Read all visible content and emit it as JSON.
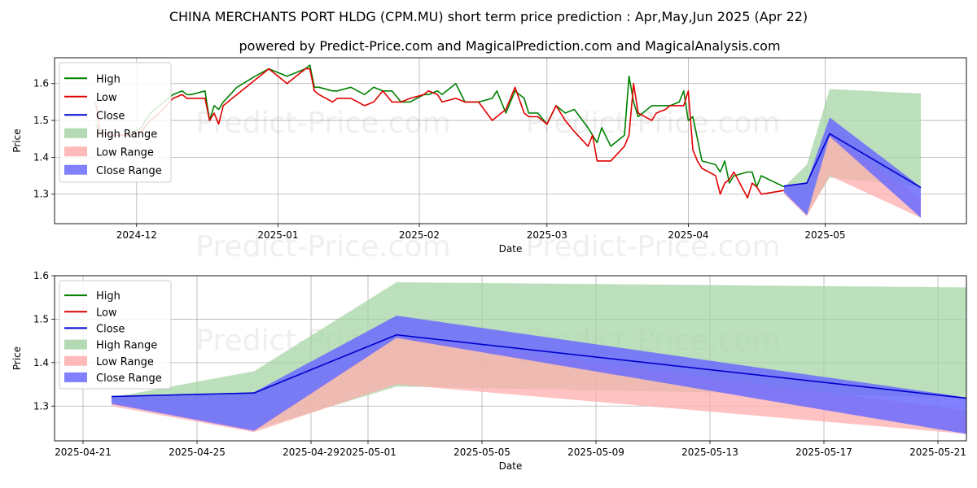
{
  "title": "CHINA MERCHANTS PORT HLDG (CPM.MU) short term price prediction : Apr,May,Jun 2025 (Apr 22)",
  "subtitle": "powered by Predict-Price.com and MagicalPrediction.com and MagicalAnalysis.com",
  "watermark": "Predict-Price.com",
  "colors": {
    "high": "#008000",
    "low": "#e00000",
    "close": "#0000cc",
    "high_range": "#a6d4a6",
    "low_range": "#ffadad",
    "close_range": "#6b6bff",
    "grid": "#b0b0b0"
  },
  "legend": [
    "High",
    "Low",
    "Close",
    "High Range",
    "Low Range",
    "Close Range"
  ],
  "chart_data": [
    {
      "type": "line",
      "panel": "top",
      "xlabel": "Date",
      "ylabel": "Price",
      "xlim": [
        "2024-11-13",
        "2025-06-01"
      ],
      "ylim": [
        1.22,
        1.67
      ],
      "x_ticks": [
        "2024-12",
        "2025-01",
        "2025-02",
        "2025-03",
        "2025-04",
        "2025-05"
      ],
      "x_tick_dates": [
        "2024-12-01",
        "2025-01-01",
        "2025-02-01",
        "2025-03-01",
        "2025-04-01",
        "2025-05-01"
      ],
      "y_ticks": [
        1.3,
        1.4,
        1.5,
        1.6
      ],
      "legend_position": "top-left",
      "grid": true,
      "series": [
        {
          "name": "High",
          "x": [
            "2024-11-22",
            "2024-11-23",
            "2024-11-26",
            "2024-11-29",
            "2024-12-02",
            "2024-12-04",
            "2024-12-06",
            "2024-12-09",
            "2024-12-11",
            "2024-12-12",
            "2024-12-13",
            "2024-12-16",
            "2024-12-17",
            "2024-12-18",
            "2024-12-19",
            "2024-12-20",
            "2024-12-23",
            "2024-12-27",
            "2024-12-30",
            "2025-01-03",
            "2025-01-07",
            "2025-01-08",
            "2025-01-09",
            "2025-01-10",
            "2025-01-13",
            "2025-01-14",
            "2025-01-17",
            "2025-01-20",
            "2025-01-22",
            "2025-01-24",
            "2025-01-26",
            "2025-01-28",
            "2025-01-30",
            "2025-02-02",
            "2025-02-03",
            "2025-02-05",
            "2025-02-06",
            "2025-02-09",
            "2025-02-11",
            "2025-02-12",
            "2025-02-14",
            "2025-02-17",
            "2025-02-18",
            "2025-02-20",
            "2025-02-22",
            "2025-02-24",
            "2025-02-25",
            "2025-02-27",
            "2025-03-01",
            "2025-03-03",
            "2025-03-05",
            "2025-03-07",
            "2025-03-10",
            "2025-03-11",
            "2025-03-12",
            "2025-03-13",
            "2025-03-15",
            "2025-03-18",
            "2025-03-19",
            "2025-03-20",
            "2025-03-21",
            "2025-03-24",
            "2025-03-25",
            "2025-03-27",
            "2025-03-28",
            "2025-03-30",
            "2025-03-31",
            "2025-04-01",
            "2025-04-02",
            "2025-04-03",
            "2025-04-04",
            "2025-04-07",
            "2025-04-08",
            "2025-04-09",
            "2025-04-10",
            "2025-04-11",
            "2025-04-14",
            "2025-04-15",
            "2025-04-16",
            "2025-04-17",
            "2025-04-22"
          ],
          "y": [
            1.49,
            1.47,
            1.46,
            1.46,
            1.48,
            1.52,
            1.54,
            1.57,
            1.58,
            1.57,
            1.57,
            1.58,
            1.5,
            1.54,
            1.53,
            1.55,
            1.59,
            1.62,
            1.64,
            1.62,
            1.64,
            1.65,
            1.59,
            1.59,
            1.58,
            1.58,
            1.59,
            1.57,
            1.59,
            1.58,
            1.58,
            1.55,
            1.55,
            1.57,
            1.57,
            1.58,
            1.57,
            1.6,
            1.55,
            1.55,
            1.55,
            1.56,
            1.58,
            1.52,
            1.58,
            1.56,
            1.52,
            1.52,
            1.49,
            1.54,
            1.52,
            1.53,
            1.48,
            1.46,
            1.44,
            1.48,
            1.43,
            1.46,
            1.62,
            1.55,
            1.51,
            1.54,
            1.54,
            1.54,
            1.54,
            1.55,
            1.58,
            1.5,
            1.51,
            1.45,
            1.39,
            1.38,
            1.36,
            1.39,
            1.33,
            1.35,
            1.36,
            1.36,
            1.32,
            1.35,
            1.32
          ]
        },
        {
          "name": "Low",
          "x": [
            "2024-11-22",
            "2024-11-23",
            "2024-11-26",
            "2024-11-29",
            "2024-12-02",
            "2024-12-04",
            "2024-12-06",
            "2024-12-09",
            "2024-12-11",
            "2024-12-12",
            "2024-12-13",
            "2024-12-16",
            "2024-12-17",
            "2024-12-18",
            "2024-12-19",
            "2024-12-20",
            "2024-12-23",
            "2024-12-27",
            "2024-12-30",
            "2025-01-03",
            "2025-01-07",
            "2025-01-08",
            "2025-01-09",
            "2025-01-10",
            "2025-01-13",
            "2025-01-14",
            "2025-01-17",
            "2025-01-20",
            "2025-01-22",
            "2025-01-24",
            "2025-01-26",
            "2025-01-28",
            "2025-01-30",
            "2025-02-02",
            "2025-02-03",
            "2025-02-05",
            "2025-02-06",
            "2025-02-09",
            "2025-02-11",
            "2025-02-12",
            "2025-02-14",
            "2025-02-17",
            "2025-02-18",
            "2025-02-20",
            "2025-02-22",
            "2025-02-24",
            "2025-02-25",
            "2025-02-27",
            "2025-03-01",
            "2025-03-03",
            "2025-03-05",
            "2025-03-07",
            "2025-03-10",
            "2025-03-11",
            "2025-03-12",
            "2025-03-13",
            "2025-03-15",
            "2025-03-18",
            "2025-03-19",
            "2025-03-20",
            "2025-03-21",
            "2025-03-24",
            "2025-03-25",
            "2025-03-27",
            "2025-03-28",
            "2025-03-30",
            "2025-03-31",
            "2025-04-01",
            "2025-04-02",
            "2025-04-03",
            "2025-04-04",
            "2025-04-07",
            "2025-04-08",
            "2025-04-09",
            "2025-04-10",
            "2025-04-11",
            "2025-04-14",
            "2025-04-15",
            "2025-04-16",
            "2025-04-17",
            "2025-04-22"
          ],
          "y": [
            1.55,
            1.47,
            1.46,
            1.46,
            1.47,
            1.5,
            1.52,
            1.56,
            1.57,
            1.56,
            1.56,
            1.56,
            1.5,
            1.52,
            1.49,
            1.54,
            1.57,
            1.61,
            1.64,
            1.6,
            1.64,
            1.64,
            1.58,
            1.57,
            1.55,
            1.56,
            1.56,
            1.54,
            1.55,
            1.58,
            1.55,
            1.55,
            1.56,
            1.57,
            1.58,
            1.57,
            1.55,
            1.56,
            1.55,
            1.55,
            1.55,
            1.5,
            1.51,
            1.53,
            1.59,
            1.52,
            1.51,
            1.51,
            1.49,
            1.54,
            1.5,
            1.47,
            1.43,
            1.46,
            1.39,
            1.39,
            1.39,
            1.43,
            1.46,
            1.6,
            1.52,
            1.5,
            1.52,
            1.53,
            1.54,
            1.54,
            1.54,
            1.58,
            1.42,
            1.39,
            1.37,
            1.35,
            1.3,
            1.33,
            1.34,
            1.36,
            1.29,
            1.33,
            1.32,
            1.3,
            1.31
          ]
        },
        {
          "name": "High Range",
          "x": [
            "2025-04-22",
            "2025-04-27",
            "2025-05-02",
            "2025-05-22"
          ],
          "upper": [
            1.32,
            1.38,
            1.585,
            1.573
          ],
          "lower": [
            1.312,
            1.245,
            1.345,
            1.32
          ]
        },
        {
          "name": "Low Range",
          "x": [
            "2025-04-22",
            "2025-04-27",
            "2025-05-02",
            "2025-05-22"
          ],
          "upper": [
            1.31,
            1.25,
            1.46,
            1.29
          ],
          "lower": [
            1.3,
            1.24,
            1.35,
            1.236
          ]
        },
        {
          "name": "Close Range",
          "x": [
            "2025-04-22",
            "2025-04-27",
            "2025-05-02",
            "2025-05-22"
          ],
          "upper": [
            1.322,
            1.332,
            1.508,
            1.32
          ],
          "lower": [
            1.305,
            1.243,
            1.457,
            1.236
          ]
        },
        {
          "name": "Close",
          "x": [
            "2025-04-22",
            "2025-04-27",
            "2025-05-02",
            "2025-05-22"
          ],
          "y": [
            1.322,
            1.33,
            1.464,
            1.318
          ]
        }
      ]
    },
    {
      "type": "line",
      "panel": "bottom",
      "xlabel": "Date",
      "ylabel": "Price",
      "xlim": [
        "2025-04-20",
        "2025-05-22"
      ],
      "ylim": [
        1.22,
        1.6
      ],
      "x_ticks": [
        "2025-04-21",
        "2025-04-25",
        "2025-04-29",
        "2025-05-01",
        "2025-05-05",
        "2025-05-09",
        "2025-05-13",
        "2025-05-17",
        "2025-05-21"
      ],
      "x_tick_dates": [
        "2025-04-21",
        "2025-04-25",
        "2025-04-29",
        "2025-05-01",
        "2025-05-05",
        "2025-05-09",
        "2025-05-13",
        "2025-05-17",
        "2025-05-21"
      ],
      "y_ticks": [
        1.3,
        1.4,
        1.5,
        1.6
      ],
      "legend_position": "top-left",
      "grid": true,
      "series": [
        {
          "name": "High Range",
          "x": [
            "2025-04-22",
            "2025-04-27",
            "2025-05-02",
            "2025-05-22"
          ],
          "upper": [
            1.32,
            1.38,
            1.585,
            1.573
          ],
          "lower": [
            1.312,
            1.245,
            1.345,
            1.32
          ]
        },
        {
          "name": "Low Range",
          "x": [
            "2025-04-22",
            "2025-04-27",
            "2025-05-02",
            "2025-05-22"
          ],
          "upper": [
            1.31,
            1.25,
            1.46,
            1.29
          ],
          "lower": [
            1.3,
            1.24,
            1.35,
            1.236
          ]
        },
        {
          "name": "Close Range",
          "x": [
            "2025-04-22",
            "2025-04-27",
            "2025-05-02",
            "2025-05-22"
          ],
          "upper": [
            1.322,
            1.332,
            1.508,
            1.32
          ],
          "lower": [
            1.305,
            1.243,
            1.457,
            1.236
          ]
        },
        {
          "name": "Close",
          "x": [
            "2025-04-22",
            "2025-04-27",
            "2025-05-02",
            "2025-05-22"
          ],
          "y": [
            1.322,
            1.33,
            1.464,
            1.318
          ]
        }
      ]
    }
  ]
}
